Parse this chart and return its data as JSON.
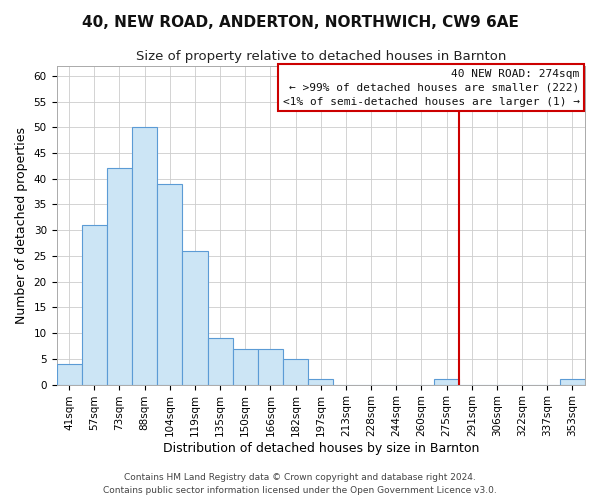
{
  "title": "40, NEW ROAD, ANDERTON, NORTHWICH, CW9 6AE",
  "subtitle": "Size of property relative to detached houses in Barnton",
  "xlabel": "Distribution of detached houses by size in Barnton",
  "ylabel": "Number of detached properties",
  "footer_lines": [
    "Contains HM Land Registry data © Crown copyright and database right 2024.",
    "Contains public sector information licensed under the Open Government Licence v3.0."
  ],
  "bins": [
    "41sqm",
    "57sqm",
    "73sqm",
    "88sqm",
    "104sqm",
    "119sqm",
    "135sqm",
    "150sqm",
    "166sqm",
    "182sqm",
    "197sqm",
    "213sqm",
    "228sqm",
    "244sqm",
    "260sqm",
    "275sqm",
    "291sqm",
    "306sqm",
    "322sqm",
    "337sqm",
    "353sqm"
  ],
  "values": [
    4,
    31,
    42,
    50,
    39,
    26,
    9,
    7,
    7,
    5,
    1,
    0,
    0,
    0,
    0,
    1,
    0,
    0,
    0,
    0,
    1
  ],
  "bar_color": "#cce5f5",
  "bar_edge_color": "#5b9bd5",
  "vline_x_index": 15,
  "vline_color": "#cc0000",
  "ylim": [
    0,
    62
  ],
  "yticks": [
    0,
    5,
    10,
    15,
    20,
    25,
    30,
    35,
    40,
    45,
    50,
    55,
    60
  ],
  "legend_title": "40 NEW ROAD: 274sqm",
  "legend_line1": "← >99% of detached houses are smaller (222)",
  "legend_line2": "<1% of semi-detached houses are larger (1) →",
  "legend_box_facecolor": "white",
  "legend_box_edge_color": "#cc0000",
  "title_fontsize": 11,
  "subtitle_fontsize": 9.5,
  "axis_label_fontsize": 9,
  "tick_fontsize": 7.5,
  "footer_fontsize": 6.5,
  "legend_fontsize": 8
}
